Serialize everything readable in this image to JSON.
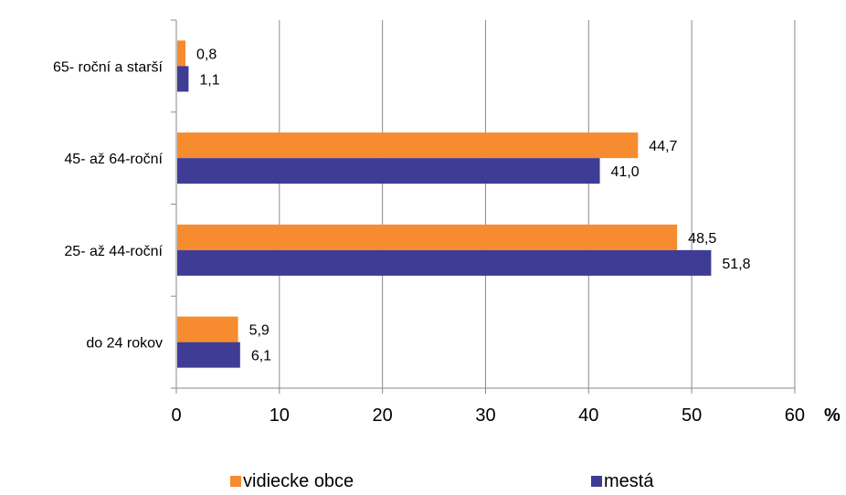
{
  "chart_data": {
    "type": "bar",
    "orientation": "horizontal",
    "categories": [
      "65- roční a starší",
      "45- až 64-roční",
      "25- až 44-roční",
      "do 24 rokov"
    ],
    "series": [
      {
        "name": "vidiecke obce",
        "color": "#F68B2F",
        "values": [
          0.8,
          44.7,
          48.5,
          5.9
        ],
        "labels": [
          "0,8",
          "44,7",
          "48,5",
          "5,9"
        ]
      },
      {
        "name": "mestá",
        "color": "#3F3C96",
        "values": [
          1.1,
          41.0,
          51.8,
          6.1
        ],
        "labels": [
          "1,1",
          "41,0",
          "51,8",
          "6,1"
        ]
      }
    ],
    "xlim": [
      0,
      60
    ],
    "xticks": [
      "0",
      "10",
      "20",
      "30",
      "40",
      "50",
      "60"
    ],
    "xunit": "%",
    "grid": true,
    "legend_position": "bottom"
  }
}
